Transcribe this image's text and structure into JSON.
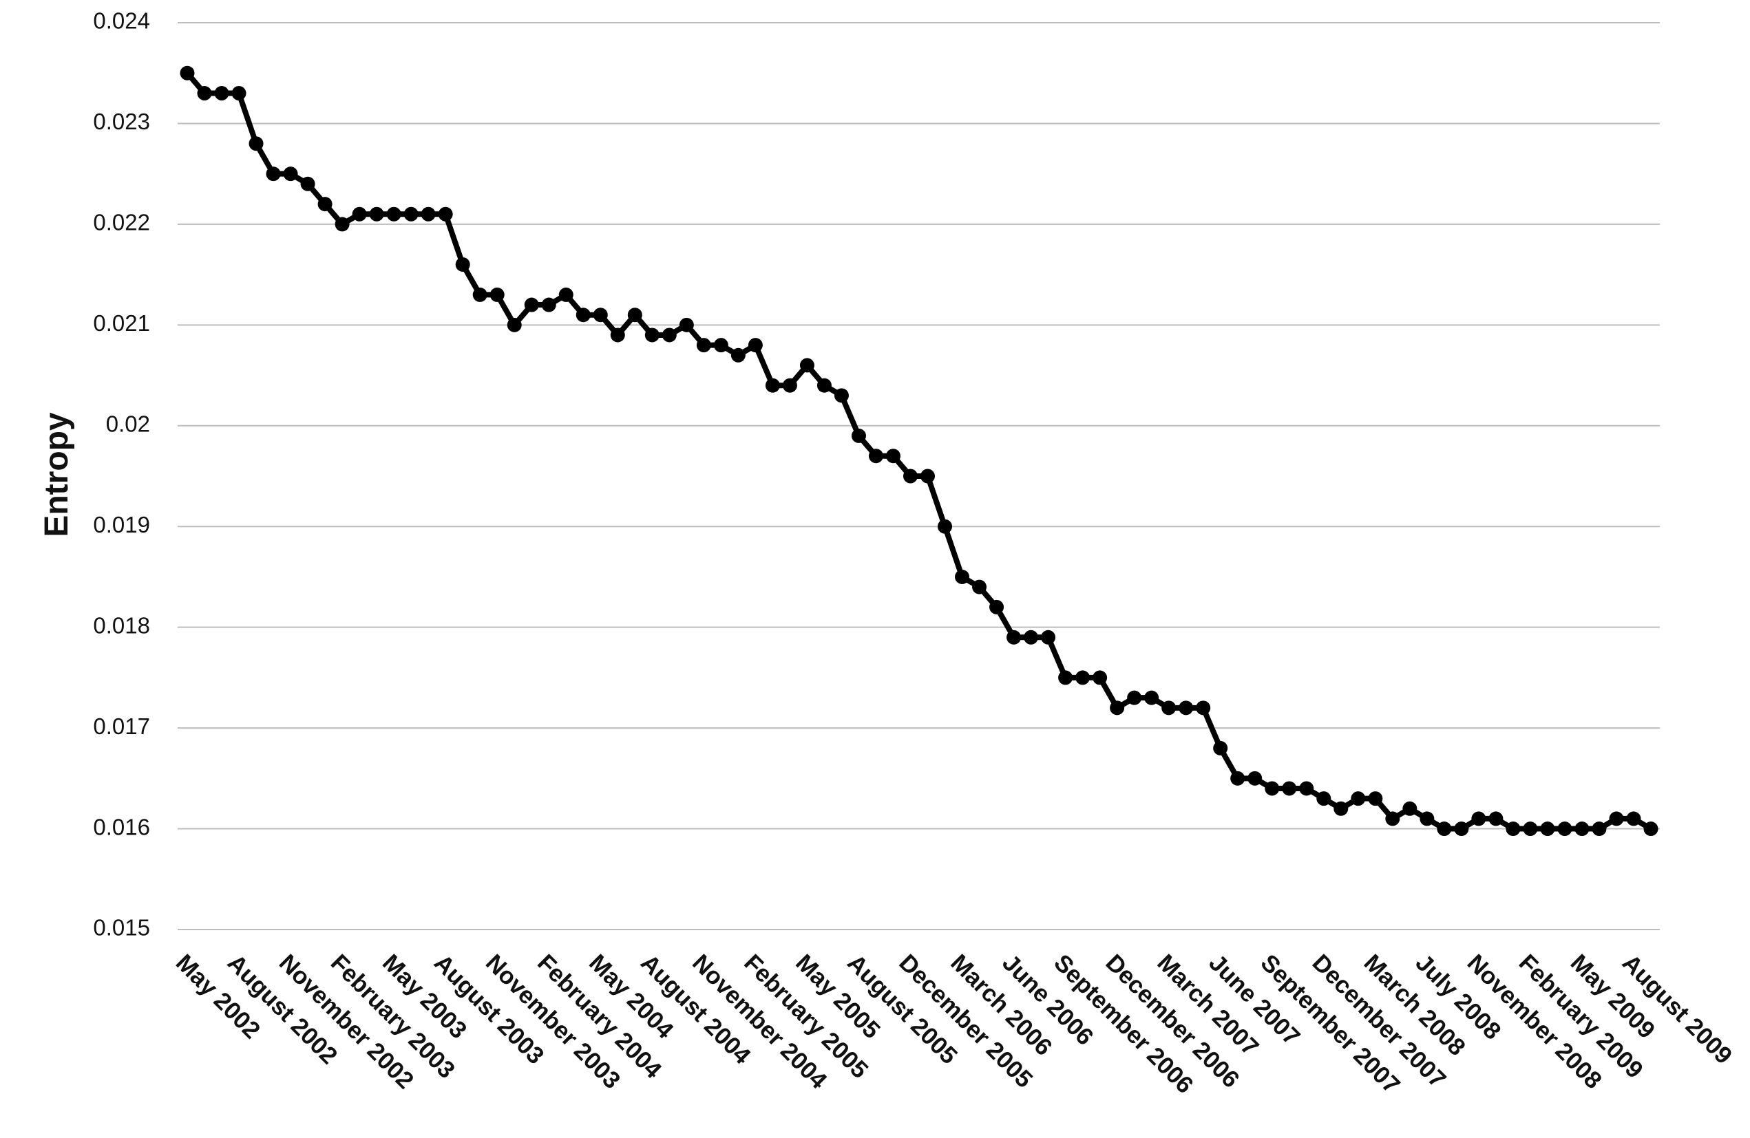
{
  "chart_data": {
    "type": "line",
    "y_label": "Entropy",
    "categories": [
      "May 2002",
      null,
      null,
      "August 2002",
      null,
      null,
      "November 2002",
      null,
      null,
      "February 2003",
      null,
      null,
      "May 2003",
      null,
      null,
      "August 2003",
      null,
      null,
      "November 2003",
      null,
      null,
      "February 2004",
      null,
      null,
      "May 2004",
      null,
      null,
      "August 2004",
      null,
      null,
      "November 2004",
      null,
      null,
      "February 2005",
      null,
      null,
      "May 2005",
      null,
      null,
      "August 2005",
      null,
      null,
      "December 2005",
      null,
      null,
      "March 2006",
      null,
      null,
      "June 2006",
      null,
      null,
      "September 2006",
      null,
      null,
      "December 2006",
      null,
      null,
      "March 2007",
      null,
      null,
      "June 2007",
      null,
      null,
      "September 2007",
      null,
      null,
      "December 2007",
      null,
      null,
      "March 2008",
      null,
      null,
      "July 2008",
      null,
      null,
      "November 2008",
      null,
      null,
      "February 2009",
      null,
      null,
      "May 2009",
      null,
      null,
      "August 2009",
      null
    ],
    "series": [
      {
        "name": "Entropy",
        "color": "#000000",
        "values": [
          0.0235,
          0.0233,
          0.0233,
          0.0233,
          0.0228,
          0.0225,
          0.0225,
          0.0224,
          0.0222,
          0.022,
          0.0221,
          0.0221,
          0.0221,
          0.0221,
          0.0221,
          0.0221,
          0.0216,
          0.0213,
          0.0213,
          0.021,
          0.0212,
          0.0212,
          0.0213,
          0.0211,
          0.0211,
          0.0209,
          0.0211,
          0.0209,
          0.0209,
          0.021,
          0.0208,
          0.0208,
          0.0207,
          0.0208,
          0.0204,
          0.0204,
          0.0206,
          0.0204,
          0.0203,
          0.0199,
          0.0197,
          0.0197,
          0.0195,
          0.0195,
          0.019,
          0.0185,
          0.0184,
          0.0182,
          0.0179,
          0.0179,
          0.0179,
          0.0175,
          0.0175,
          0.0175,
          0.0172,
          0.0173,
          0.0173,
          0.0172,
          0.0172,
          0.0172,
          0.0168,
          0.0165,
          0.0165,
          0.0164,
          0.0164,
          0.0164,
          0.0163,
          0.0162,
          0.0163,
          0.0163,
          0.0161,
          0.0162,
          0.0161,
          0.016,
          0.016,
          0.0161,
          0.0161,
          0.016,
          0.016,
          0.016,
          0.016,
          0.016,
          0.016,
          0.0161,
          0.0161,
          0.016
        ]
      }
    ],
    "ylim": [
      0.015,
      0.024
    ],
    "yticks": [
      0.015,
      0.016,
      0.017,
      0.018,
      0.019,
      0.02,
      0.021,
      0.022,
      0.023,
      0.024
    ],
    "grid": true
  }
}
